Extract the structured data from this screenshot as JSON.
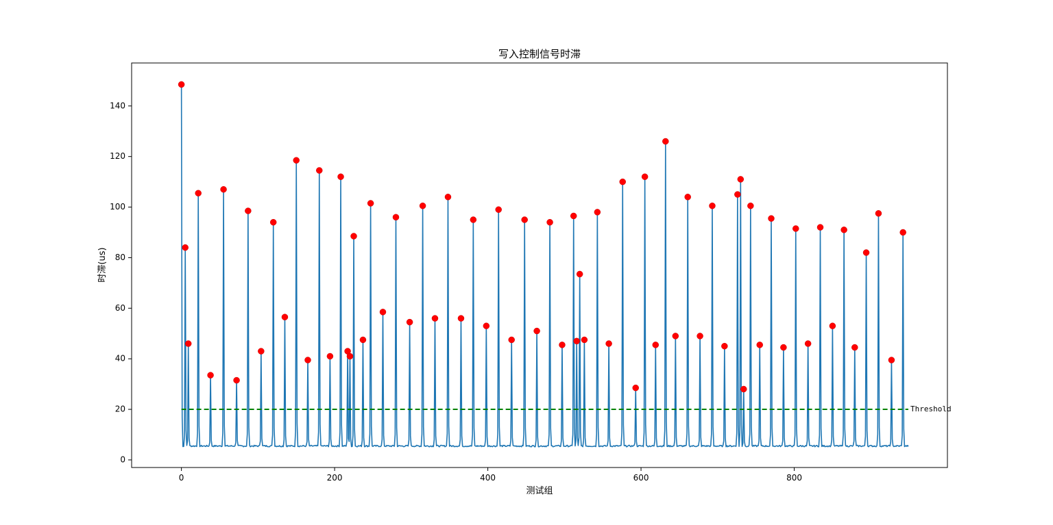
{
  "chart_data": {
    "type": "line",
    "title": "写入控制信号时滞",
    "xlabel": "测试组",
    "ylabel": "时滞(us)",
    "xlim": [
      -65,
      1000
    ],
    "ylim": [
      -3,
      157
    ],
    "x_ticks": [
      0,
      200,
      400,
      600,
      800
    ],
    "y_ticks": [
      0,
      20,
      40,
      60,
      80,
      100,
      120,
      140
    ],
    "grid": false,
    "n_points": 950,
    "baseline": 5.5,
    "series": [
      {
        "color": "#1f77b4",
        "peaks": [
          [
            0,
            148.5
          ],
          [
            5,
            84
          ],
          [
            9,
            46
          ],
          [
            22,
            105.5
          ],
          [
            38,
            33.5
          ],
          [
            55,
            107
          ],
          [
            72,
            31.5
          ],
          [
            87,
            98.5
          ],
          [
            104,
            43
          ],
          [
            120,
            94
          ],
          [
            135,
            56.5
          ],
          [
            150,
            118.5
          ],
          [
            165,
            39.5
          ],
          [
            180,
            114.5
          ],
          [
            194,
            41
          ],
          [
            208,
            112
          ],
          [
            217,
            43
          ],
          [
            220,
            41
          ],
          [
            225,
            88.5
          ],
          [
            237,
            47.5
          ],
          [
            247,
            101.5
          ],
          [
            263,
            58.5
          ],
          [
            280,
            96
          ],
          [
            298,
            54.5
          ],
          [
            315,
            100.5
          ],
          [
            331,
            56
          ],
          [
            348,
            104
          ],
          [
            365,
            56
          ],
          [
            381,
            95
          ],
          [
            398,
            53
          ],
          [
            414,
            99
          ],
          [
            431,
            47.5
          ],
          [
            448,
            95
          ],
          [
            464,
            51
          ],
          [
            481,
            94
          ],
          [
            497,
            45.5
          ],
          [
            512,
            96.5
          ],
          [
            516,
            47
          ],
          [
            520,
            73.5
          ],
          [
            526,
            47.5
          ],
          [
            543,
            98
          ],
          [
            558,
            46
          ],
          [
            576,
            110
          ],
          [
            593,
            28.5
          ],
          [
            605,
            112
          ],
          [
            619,
            45.5
          ],
          [
            632,
            126
          ],
          [
            645,
            49
          ],
          [
            661,
            104
          ],
          [
            677,
            49
          ],
          [
            693,
            100.5
          ],
          [
            709,
            45
          ],
          [
            726,
            105
          ],
          [
            730,
            111
          ],
          [
            734,
            28
          ],
          [
            743,
            100.5
          ],
          [
            755,
            45.5
          ],
          [
            770,
            95.5
          ],
          [
            786,
            44.5
          ],
          [
            802,
            91.5
          ],
          [
            818,
            46
          ],
          [
            834,
            92
          ],
          [
            850,
            53
          ],
          [
            865,
            91
          ],
          [
            879,
            44.5
          ],
          [
            894,
            82
          ],
          [
            910,
            97.5
          ],
          [
            927,
            39.5
          ],
          [
            942,
            90
          ]
        ]
      }
    ],
    "markers": {
      "color": "#ff0000"
    },
    "threshold": {
      "value": 20,
      "color": "#008000",
      "label": "Threshold"
    }
  }
}
